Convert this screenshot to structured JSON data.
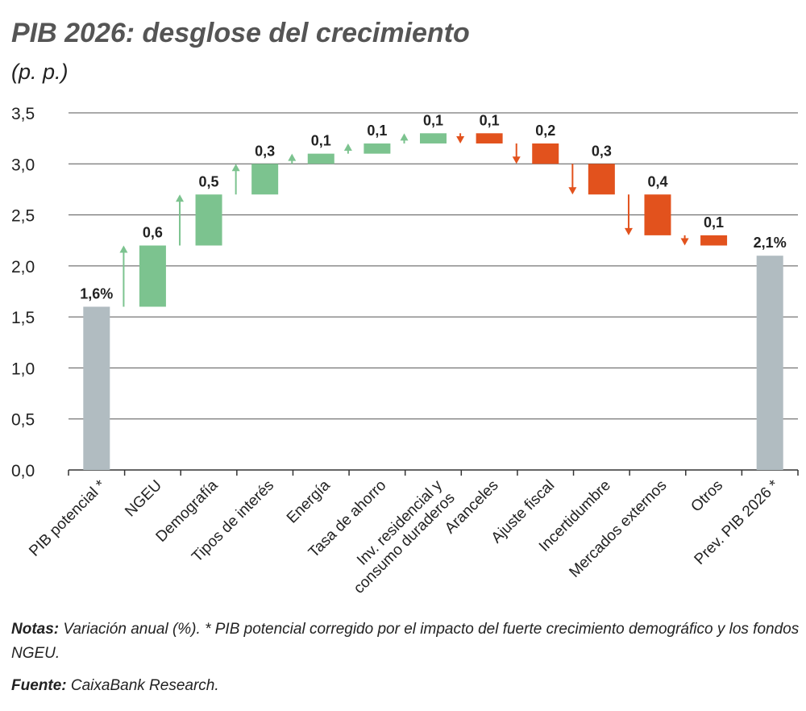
{
  "chart_data": {
    "type": "waterfall",
    "title": "PIB 2026: desglose del crecimiento",
    "subtitle": "(p. p.)",
    "categories": [
      "PIB potencial *",
      "NGEU",
      "Demografía",
      "Tipos de interés",
      "Energía",
      "Tasa de ahorro",
      "Inv. residencial y\nconsumo duraderos",
      "Aranceles",
      "Ajuste fiscal",
      "Incertidumbre",
      "Mercados externos",
      "Otros",
      "Prev. PIB 2026 *"
    ],
    "measures": [
      "total",
      "relative",
      "relative",
      "relative",
      "relative",
      "relative",
      "relative",
      "relative",
      "relative",
      "relative",
      "relative",
      "relative",
      "total"
    ],
    "values": [
      1.6,
      0.6,
      0.5,
      0.3,
      0.1,
      0.1,
      0.1,
      -0.1,
      -0.2,
      -0.3,
      -0.4,
      -0.1,
      2.1
    ],
    "value_labels": [
      "1,6%",
      "0,6",
      "0,5",
      "0,3",
      "0,1",
      "0,1",
      "0,1",
      "0,1",
      "0,2",
      "0,3",
      "0,4",
      "0,1",
      "2,1%"
    ],
    "colors": {
      "total": "#b1bcc1",
      "increase": "#7cc38f",
      "decrease": "#e2521d"
    },
    "ylim": [
      0,
      3.5
    ],
    "yticks": [
      {
        "value": 0,
        "label": "0,0"
      },
      {
        "value": 0.5,
        "label": "0,5"
      },
      {
        "value": 1,
        "label": "1,0"
      },
      {
        "value": 1.5,
        "label": "1,5"
      },
      {
        "value": 2,
        "label": "2,0"
      },
      {
        "value": 2.5,
        "label": "2,5"
      },
      {
        "value": 3,
        "label": "3,0"
      },
      {
        "value": 3.5,
        "label": "3,5"
      }
    ],
    "grid": true
  },
  "notes": {
    "label": "Notas:",
    "text": "Variación anual (%). * PIB potencial corregido por el impacto del fuerte crecimiento demográfico y los fondos NGEU."
  },
  "source": {
    "label": "Fuente:",
    "text": "CaixaBank Research."
  }
}
